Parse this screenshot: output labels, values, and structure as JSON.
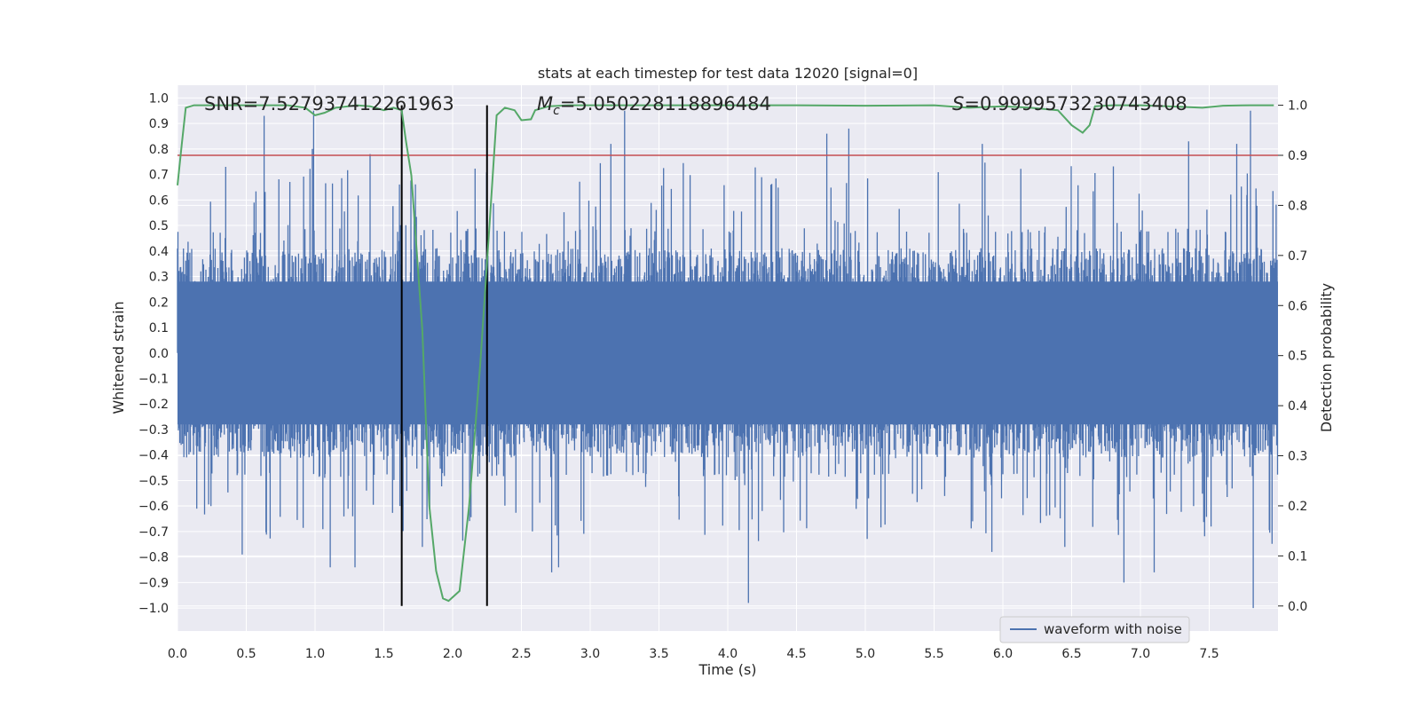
{
  "chart_data": {
    "type": "line",
    "title": "stats at each timestep for test data 12020 [signal=0]",
    "xlabel": "Time (s)",
    "ylabel": "Whitened strain",
    "ylabel_right": "Detection probability",
    "xlim": [
      0.0,
      8.0
    ],
    "ylim": [
      -1.09,
      1.05
    ],
    "ylim_right": [
      -0.05,
      1.04
    ],
    "x_ticks": [
      "0.0",
      "0.5",
      "1.0",
      "1.5",
      "2.0",
      "2.5",
      "3.0",
      "3.5",
      "4.0",
      "4.5",
      "5.0",
      "5.5",
      "6.0",
      "6.5",
      "7.0",
      "7.5"
    ],
    "x_tick_values": [
      0.0,
      0.5,
      1.0,
      1.5,
      2.0,
      2.5,
      3.0,
      3.5,
      4.0,
      4.5,
      5.0,
      5.5,
      6.0,
      6.5,
      7.0,
      7.5
    ],
    "y_ticks": [
      "1.0",
      "0.9",
      "0.8",
      "0.7",
      "0.6",
      "0.5",
      "0.4",
      "0.3",
      "0.2",
      "0.1",
      "0.0",
      "−0.1",
      "−0.2",
      "−0.3",
      "−0.4",
      "−0.5",
      "−0.6",
      "−0.7",
      "−0.8",
      "−0.9",
      "−1.0"
    ],
    "y_tick_values": [
      1.0,
      0.9,
      0.8,
      0.7,
      0.6,
      0.5,
      0.4,
      0.3,
      0.2,
      0.1,
      0.0,
      -0.1,
      -0.2,
      -0.3,
      -0.4,
      -0.5,
      -0.6,
      -0.7,
      -0.8,
      -0.9,
      -1.0
    ],
    "y_right_ticks": [
      "1.0",
      "0.9",
      "0.8",
      "0.7",
      "0.6",
      "0.5",
      "0.4",
      "0.3",
      "0.2",
      "0.1",
      "0.0"
    ],
    "y_right_tick_values": [
      1.0,
      0.9,
      0.8,
      0.7,
      0.6,
      0.5,
      0.4,
      0.3,
      0.2,
      0.1,
      0.0
    ],
    "annotations": {
      "snr": "SNR=7.527937412261963",
      "mc_symbol": "M",
      "mc_sub": "c",
      "mc_value": "=5.050228118896484",
      "s_symbol": "S",
      "s_value": "=0.9999573230743408"
    },
    "legend": {
      "label": "waveform with noise",
      "placement": "lower-right"
    },
    "threshold": {
      "value": 0.9,
      "axis": "right",
      "color": "#c44e52"
    },
    "vlines": [
      1.63,
      2.25
    ],
    "waveform": {
      "name": "waveform with noise",
      "color": "#4c72b0",
      "duration": 8.0,
      "typical_amplitude": 0.33,
      "spikes": [
        {
          "t": 0.63,
          "v": 0.93
        },
        {
          "t": 0.99,
          "v": 0.95
        },
        {
          "t": 0.98,
          "v": 0.8
        },
        {
          "t": 1.4,
          "v": 0.78
        },
        {
          "t": 3.25,
          "v": 0.95
        },
        {
          "t": 3.15,
          "v": 0.82
        },
        {
          "t": 4.88,
          "v": 0.88
        },
        {
          "t": 4.72,
          "v": 0.86
        },
        {
          "t": 7.8,
          "v": 0.95
        },
        {
          "t": 7.35,
          "v": 0.83
        },
        {
          "t": 5.85,
          "v": 0.82
        },
        {
          "t": 7.7,
          "v": 0.82
        },
        {
          "t": 4.15,
          "v": -0.98
        },
        {
          "t": 7.82,
          "v": -1.0
        },
        {
          "t": 6.88,
          "v": -0.9
        },
        {
          "t": 1.78,
          "v": -0.76
        },
        {
          "t": 1.11,
          "v": -0.84
        },
        {
          "t": 1.29,
          "v": -0.84
        },
        {
          "t": 2.72,
          "v": -0.86
        },
        {
          "t": 2.77,
          "v": -0.84
        },
        {
          "t": 0.47,
          "v": -0.79
        },
        {
          "t": 5.92,
          "v": -0.78
        },
        {
          "t": 6.45,
          "v": -0.76
        },
        {
          "t": 7.1,
          "v": -0.86
        }
      ]
    },
    "series": [
      {
        "name": "detection probability",
        "axis": "right",
        "color": "#55a868",
        "x": [
          0.0,
          0.03,
          0.06,
          0.12,
          0.2,
          0.4,
          0.6,
          0.8,
          0.93,
          1.0,
          1.07,
          1.15,
          1.3,
          1.4,
          1.5,
          1.57,
          1.63,
          1.66,
          1.7,
          1.78,
          1.83,
          1.88,
          1.93,
          1.97,
          2.05,
          2.12,
          2.2,
          2.27,
          2.32,
          2.38,
          2.45,
          2.5,
          2.57,
          2.6,
          2.7,
          2.85,
          3.0,
          3.2,
          3.5,
          4.0,
          4.5,
          5.0,
          5.5,
          5.75,
          6.0,
          6.2,
          6.4,
          6.5,
          6.58,
          6.63,
          6.67,
          6.8,
          7.0,
          7.2,
          7.45,
          7.6,
          7.8,
          7.97
        ],
        "y": [
          0.84,
          0.92,
          0.995,
          1.0,
          1.0,
          1.0,
          1.0,
          1.0,
          0.995,
          0.98,
          0.985,
          0.995,
          1.0,
          0.998,
          0.99,
          0.995,
          0.99,
          0.93,
          0.86,
          0.55,
          0.2,
          0.07,
          0.015,
          0.01,
          0.03,
          0.2,
          0.48,
          0.77,
          0.98,
          0.995,
          0.99,
          0.97,
          0.972,
          0.99,
          0.998,
          1.0,
          1.0,
          1.0,
          1.0,
          1.0,
          1.0,
          0.999,
          1.0,
          0.995,
          0.998,
          0.995,
          0.99,
          0.96,
          0.945,
          0.96,
          0.998,
          1.0,
          1.0,
          0.998,
          0.995,
          0.999,
          1.0,
          1.0
        ]
      }
    ]
  }
}
